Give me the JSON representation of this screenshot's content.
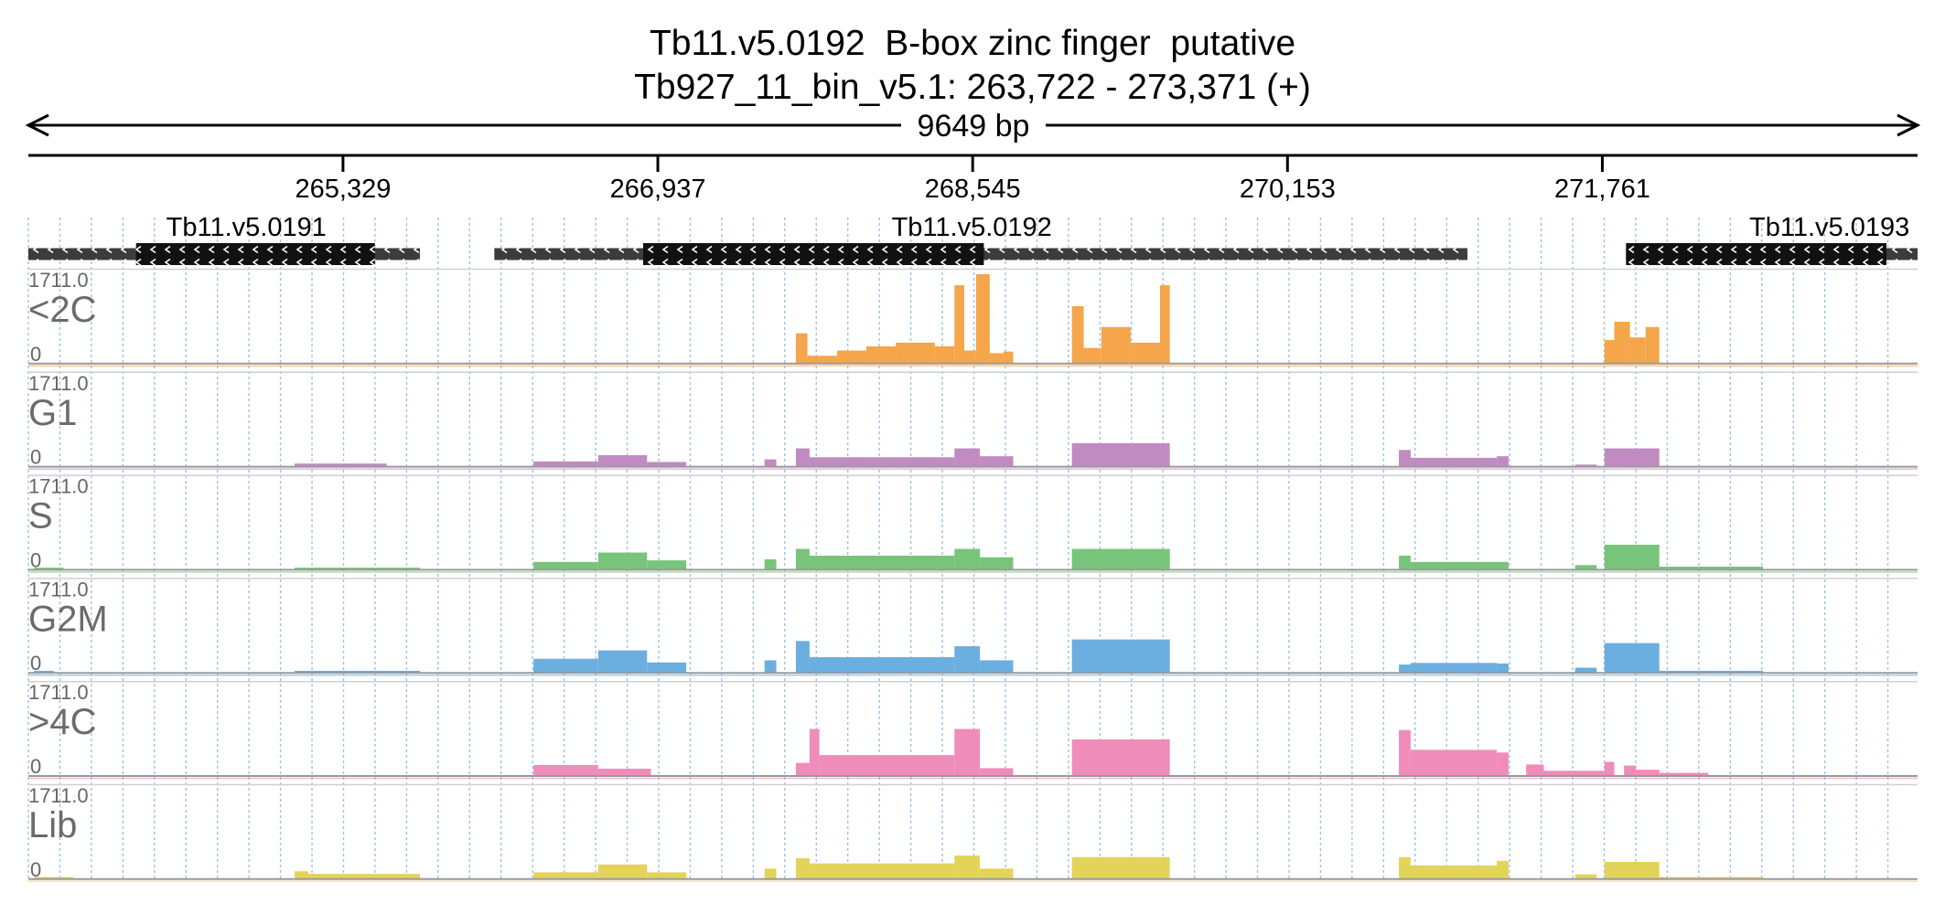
{
  "chart_data": {
    "type": "area",
    "title": "Tb11.v5.0192  B-box zinc finger  putative",
    "subtitle": "Tb927_11_bin_v5.1: 263,722 - 273,371 (+)",
    "span_label": "9649 bp",
    "region": {
      "start": 263722,
      "end": 273371
    },
    "ticks": [
      {
        "pos": 265329,
        "label": "265,329"
      },
      {
        "pos": 266937,
        "label": "266,937"
      },
      {
        "pos": 268545,
        "label": "268,545"
      },
      {
        "pos": 270153,
        "label": "270,153"
      },
      {
        "pos": 271761,
        "label": "271,761"
      }
    ],
    "genes": [
      {
        "name": "Tb11.v5.0191",
        "start": 263722,
        "end": 265722,
        "cds_start": 264272,
        "cds_end": 265492,
        "strand": "-"
      },
      {
        "name": "Tb11.v5.0192",
        "start": 266102,
        "end": 271072,
        "cds_start": 266862,
        "cds_end": 268602,
        "strand": "-"
      },
      {
        "name": "Tb11.v5.0193",
        "start": 271882,
        "end": 273371,
        "cds_start": 271882,
        "cds_end": 273212,
        "strand": "-"
      }
    ],
    "y_max_label": "1711.0",
    "y_min_label": "0",
    "ylim": [
      0,
      1711
    ],
    "tracks": [
      {
        "name": "<2C",
        "color": "#f5a54a",
        "segments": [
          [
            267642,
            267701,
            580
          ],
          [
            267701,
            267852,
            150
          ],
          [
            267852,
            268002,
            250
          ],
          [
            268002,
            268152,
            330
          ],
          [
            268152,
            268352,
            400
          ],
          [
            268352,
            268452,
            330
          ],
          [
            268452,
            268502,
            1500
          ],
          [
            268502,
            268562,
            250
          ],
          [
            268562,
            268632,
            1711
          ],
          [
            268632,
            268702,
            200
          ],
          [
            268702,
            268752,
            230
          ],
          [
            269052,
            269112,
            1100
          ],
          [
            269112,
            269202,
            300
          ],
          [
            269202,
            269352,
            700
          ],
          [
            269352,
            269502,
            400
          ],
          [
            269502,
            269552,
            1500
          ],
          [
            271772,
            271822,
            450
          ],
          [
            271822,
            271902,
            800
          ],
          [
            271902,
            271982,
            500
          ],
          [
            271982,
            272052,
            700
          ]
        ]
      },
      {
        "name": "G1",
        "color": "#c08bc0",
        "segments": [
          [
            265082,
            265552,
            60
          ],
          [
            266302,
            266632,
            100
          ],
          [
            266632,
            266882,
            220
          ],
          [
            266882,
            267082,
            90
          ],
          [
            267482,
            267542,
            140
          ],
          [
            267642,
            267712,
            350
          ],
          [
            267712,
            268452,
            180
          ],
          [
            268452,
            268582,
            350
          ],
          [
            268582,
            268752,
            200
          ],
          [
            269052,
            269552,
            450
          ],
          [
            270722,
            270782,
            320
          ],
          [
            270782,
            271222,
            170
          ],
          [
            271222,
            271282,
            200
          ],
          [
            271622,
            271732,
            40
          ],
          [
            271772,
            272052,
            350
          ]
        ]
      },
      {
        "name": "S",
        "color": "#77c47a",
        "segments": [
          [
            263752,
            263902,
            40
          ],
          [
            265082,
            265722,
            40
          ],
          [
            266302,
            266632,
            150
          ],
          [
            266632,
            266882,
            330
          ],
          [
            266882,
            267082,
            180
          ],
          [
            267482,
            267542,
            200
          ],
          [
            267642,
            267712,
            400
          ],
          [
            267712,
            268452,
            270
          ],
          [
            268452,
            268582,
            400
          ],
          [
            268582,
            268752,
            240
          ],
          [
            269052,
            269552,
            400
          ],
          [
            270722,
            270782,
            270
          ],
          [
            270782,
            271222,
            150
          ],
          [
            271222,
            271282,
            150
          ],
          [
            271622,
            271732,
            90
          ],
          [
            271772,
            272052,
            480
          ],
          [
            272052,
            272582,
            60
          ]
        ]
      },
      {
        "name": "G2M",
        "color": "#6baee0",
        "segments": [
          [
            263752,
            263852,
            40
          ],
          [
            265082,
            265722,
            40
          ],
          [
            266302,
            266632,
            270
          ],
          [
            266632,
            266882,
            430
          ],
          [
            266882,
            267082,
            200
          ],
          [
            267482,
            267542,
            240
          ],
          [
            267642,
            267712,
            610
          ],
          [
            267712,
            268452,
            300
          ],
          [
            268452,
            268582,
            510
          ],
          [
            268582,
            268752,
            240
          ],
          [
            269052,
            269552,
            640
          ],
          [
            270722,
            270782,
            160
          ],
          [
            270782,
            271222,
            190
          ],
          [
            271222,
            271282,
            180
          ],
          [
            271622,
            271732,
            100
          ],
          [
            271772,
            272052,
            570
          ],
          [
            272052,
            272582,
            40
          ]
        ]
      },
      {
        "name": ">4C",
        "color": "#f08cba",
        "segments": [
          [
            266302,
            266632,
            210
          ],
          [
            266632,
            266902,
            140
          ],
          [
            267642,
            267712,
            250
          ],
          [
            267712,
            267762,
            900
          ],
          [
            267762,
            268452,
            400
          ],
          [
            268452,
            268582,
            900
          ],
          [
            268582,
            268752,
            150
          ],
          [
            269052,
            269552,
            700
          ],
          [
            270722,
            270782,
            880
          ],
          [
            270782,
            271222,
            500
          ],
          [
            271222,
            271282,
            450
          ],
          [
            271372,
            271462,
            220
          ],
          [
            271462,
            271772,
            100
          ],
          [
            271772,
            271822,
            270
          ],
          [
            271872,
            271932,
            200
          ],
          [
            271932,
            272052,
            120
          ],
          [
            272052,
            272302,
            60
          ]
        ]
      },
      {
        "name": "Lib",
        "color": "#e3d35a",
        "segments": [
          [
            263752,
            263952,
            40
          ],
          [
            265082,
            265152,
            150
          ],
          [
            265152,
            265722,
            100
          ],
          [
            266302,
            266632,
            130
          ],
          [
            266632,
            266882,
            280
          ],
          [
            266882,
            267082,
            130
          ],
          [
            267482,
            267542,
            200
          ],
          [
            267642,
            267712,
            400
          ],
          [
            267712,
            268452,
            300
          ],
          [
            268452,
            268582,
            450
          ],
          [
            268582,
            268752,
            200
          ],
          [
            269052,
            269552,
            420
          ],
          [
            270722,
            270782,
            420
          ],
          [
            270782,
            271222,
            260
          ],
          [
            271222,
            271282,
            350
          ],
          [
            271622,
            271732,
            90
          ],
          [
            271772,
            272052,
            330
          ],
          [
            272052,
            272582,
            40
          ]
        ]
      }
    ]
  }
}
